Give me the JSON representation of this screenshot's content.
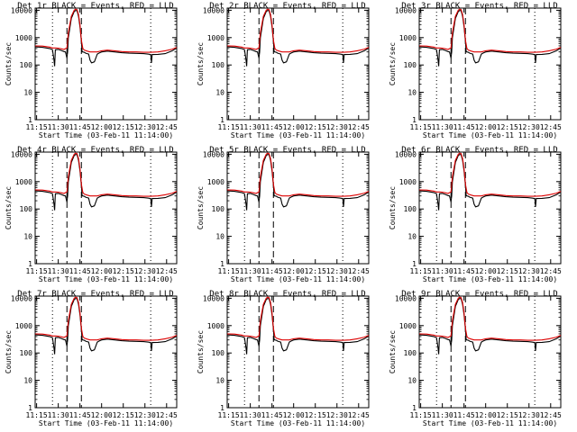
{
  "colors": {
    "events": "#000000",
    "lld": "#dd0000",
    "background": "#ffffff",
    "axes": "#000000"
  },
  "chart_data": [
    {
      "det": "1r"
    },
    {
      "det": "2r"
    },
    {
      "det": "3r"
    },
    {
      "det": "4r"
    },
    {
      "det": "5r"
    },
    {
      "det": "6r"
    },
    {
      "det": "7r"
    },
    {
      "det": "8r"
    },
    {
      "det": "9r"
    }
  ],
  "common": {
    "type": "line",
    "title_suffix": " BLACK = Events, RED = LLD",
    "title_prefix": "Det ",
    "xlabel": "Start Time (03-Feb-11 11:14:00)",
    "ylabel": "Counts/sec",
    "yscale": "log",
    "ylim": [
      1,
      12000
    ],
    "xlim_minutes": [
      0,
      98
    ],
    "x_tick_labels": [
      "11:15",
      "11:30",
      "11:45",
      "12:00",
      "12:15",
      "12:30",
      "12:45"
    ],
    "x_tick_minutes": [
      1,
      16,
      31,
      46,
      61,
      76,
      91
    ],
    "y_tick_labels": [
      "1",
      "10",
      "100",
      "1000",
      "10000"
    ],
    "y_tick_values": [
      1,
      10,
      100,
      1000,
      10000
    ],
    "dotted_vlines_minutes": [
      12,
      80
    ],
    "dashed_vlines_minutes": [
      22,
      32
    ],
    "series": [
      {
        "name": "Events",
        "color": "#000000",
        "x": [
          0,
          5,
          10,
          12,
          13,
          13.5,
          14,
          16,
          18,
          20,
          21,
          22,
          22.5,
          23,
          25,
          27,
          28,
          29,
          30,
          31,
          32,
          32.5,
          33,
          34,
          35,
          36,
          37,
          38,
          39,
          40,
          41,
          43,
          44,
          46,
          50,
          55,
          60,
          65,
          70,
          75,
          78,
          80,
          80.5,
          81,
          82,
          85,
          90,
          95,
          98
        ],
        "y": [
          460,
          440,
          400,
          360,
          160,
          90,
          360,
          370,
          340,
          310,
          300,
          180,
          300,
          1000,
          5000,
          9000,
          9800,
          9600,
          6000,
          2500,
          700,
          300,
          300,
          290,
          270,
          260,
          250,
          150,
          120,
          125,
          130,
          250,
          270,
          300,
          320,
          300,
          280,
          270,
          265,
          260,
          250,
          240,
          120,
          240,
          240,
          245,
          260,
          330,
          420
        ]
      },
      {
        "name": "LLD",
        "color": "#dd0000",
        "x": [
          0,
          5,
          10,
          12,
          14,
          16,
          18,
          20,
          22,
          23,
          25,
          27,
          28,
          29,
          30,
          31,
          32,
          33,
          34,
          36,
          38,
          40,
          43,
          46,
          50,
          55,
          60,
          65,
          70,
          75,
          80,
          85,
          90,
          95,
          98
        ],
        "y": [
          500,
          490,
          450,
          420,
          420,
          410,
          390,
          370,
          420,
          1500,
          6000,
          10000,
          11000,
          10500,
          7000,
          3000,
          800,
          400,
          350,
          320,
          300,
          300,
          300,
          330,
          350,
          330,
          310,
          300,
          300,
          290,
          290,
          300,
          330,
          380,
          440
        ]
      }
    ]
  }
}
